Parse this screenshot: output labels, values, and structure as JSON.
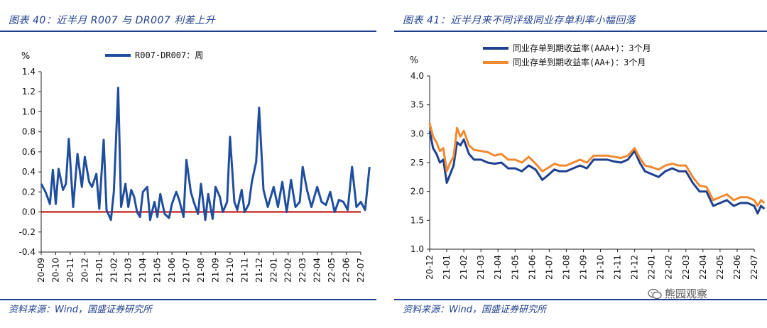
{
  "left": {
    "title": "图表 40：近半月 R007 与 DR007 利差上升",
    "source": "资料来源：Wind，国盛证券研究所",
    "chart_data": {
      "type": "line",
      "ylabel": "%",
      "ylim": [
        -0.4,
        1.4
      ],
      "yticks": [
        "1.4",
        "1.2",
        "1.0",
        "0.8",
        "0.6",
        "0.4",
        "0.2",
        "0.0",
        "-0.2",
        "-0.4"
      ],
      "xticks": [
        "20-09",
        "20-10",
        "20-11",
        "20-12",
        "21-01",
        "21-02",
        "21-03",
        "21-04",
        "21-05",
        "21-06",
        "21-07",
        "21-08",
        "21-09",
        "21-10",
        "21-11",
        "21-12",
        "22-01",
        "22-02",
        "22-03",
        "22-04",
        "22-05",
        "22-06",
        "22-07"
      ],
      "legend_position": "top",
      "series": [
        {
          "name": "R007-DR007：周",
          "color": "#1f4e9e",
          "x": [
            0,
            0.3,
            0.6,
            0.8,
            1.0,
            1.2,
            1.5,
            1.7,
            1.9,
            2.2,
            2.5,
            2.8,
            3.0,
            3.3,
            3.5,
            3.8,
            4.0,
            4.3,
            4.5,
            4.8,
            5.0,
            5.3,
            5.5,
            5.8,
            6.0,
            6.2,
            6.4,
            6.6,
            6.8,
            7.0,
            7.3,
            7.5,
            7.8,
            8.0,
            8.2,
            8.5,
            8.8,
            9.0,
            9.3,
            9.5,
            9.8,
            10.0,
            10.3,
            10.5,
            10.8,
            11.0,
            11.3,
            11.5,
            11.8,
            12.0,
            12.3,
            12.5,
            12.8,
            13.0,
            13.3,
            13.5,
            13.8,
            14.0,
            14.3,
            14.5,
            14.8,
            15.0,
            15.3,
            15.6,
            16.0,
            16.3,
            16.6,
            16.9,
            17.2,
            17.5,
            17.8,
            18.0,
            18.3,
            18.6,
            19.0,
            19.3,
            19.6,
            19.9,
            20.2,
            20.5,
            20.8,
            21.1,
            21.4,
            21.7,
            22.0,
            22.3,
            22.6
          ],
          "values": [
            0.28,
            0.2,
            0.08,
            0.42,
            0.08,
            0.43,
            0.22,
            0.28,
            0.73,
            0.05,
            0.58,
            0.25,
            0.55,
            0.3,
            0.25,
            0.38,
            0.03,
            0.72,
            0.02,
            -0.08,
            0.2,
            1.24,
            0.05,
            0.28,
            0.05,
            0.22,
            0.15,
            0.0,
            -0.05,
            0.2,
            0.25,
            -0.08,
            0.1,
            -0.05,
            0.18,
            -0.02,
            -0.06,
            0.08,
            0.2,
            0.12,
            -0.05,
            0.52,
            0.2,
            0.1,
            -0.02,
            0.28,
            -0.08,
            0.18,
            -0.07,
            0.25,
            0.15,
            0.0,
            0.1,
            0.75,
            0.1,
            0.02,
            0.22,
            0.0,
            0.08,
            0.3,
            0.5,
            1.04,
            0.22,
            0.05,
            0.25,
            0.05,
            0.3,
            0.0,
            0.32,
            0.05,
            0.1,
            0.45,
            0.22,
            0.05,
            0.25,
            0.1,
            0.07,
            0.2,
            0.0,
            0.12,
            0.1,
            0.02,
            0.45,
            0.05,
            0.1,
            0.02,
            0.45
          ]
        }
      ],
      "reference_line": {
        "y": 0.0,
        "color": "#c00000"
      }
    }
  },
  "right": {
    "title": "图表 41：近半月来不同评级同业存单利率小幅回落",
    "source": "资料来源：Wind，国盛证券研究所",
    "chart_data": {
      "type": "line",
      "ylabel": "%",
      "ylim": [
        1.0,
        4.0
      ],
      "yticks": [
        "4.0",
        "3.5",
        "3.0",
        "2.5",
        "2.0",
        "1.5",
        "1.0"
      ],
      "xticks": [
        "20-12",
        "21-01",
        "21-02",
        "21-03",
        "21-04",
        "21-05",
        "21-06",
        "21-07",
        "21-08",
        "21-09",
        "21-10",
        "21-11",
        "21-12",
        "22-01",
        "22-02",
        "22-03",
        "22-04",
        "22-05",
        "22-06",
        "22-07"
      ],
      "legend_position": "top",
      "series": [
        {
          "name": "同业存单到期收益率(AAA+)：3个月",
          "color": "#1f3f8f",
          "x": [
            0,
            0.2,
            0.4,
            0.6,
            0.8,
            1.0,
            1.2,
            1.4,
            1.6,
            1.8,
            2.0,
            2.3,
            2.6,
            3.0,
            3.4,
            3.8,
            4.2,
            4.6,
            5.0,
            5.4,
            5.8,
            6.2,
            6.6,
            7.0,
            7.3,
            7.6,
            8.0,
            8.4,
            8.8,
            9.2,
            9.6,
            10.0,
            10.4,
            10.8,
            11.2,
            11.6,
            12.0,
            12.3,
            12.6,
            13.0,
            13.4,
            13.8,
            14.2,
            14.6,
            15.0,
            15.4,
            15.8,
            16.2,
            16.6,
            17.0,
            17.4,
            17.8,
            18.2,
            18.6,
            19.0,
            19.2,
            19.4,
            19.6
          ],
          "values": [
            3.05,
            2.75,
            2.65,
            2.5,
            2.55,
            2.15,
            2.3,
            2.45,
            2.85,
            2.8,
            2.9,
            2.65,
            2.55,
            2.55,
            2.5,
            2.48,
            2.5,
            2.4,
            2.4,
            2.35,
            2.45,
            2.38,
            2.2,
            2.3,
            2.38,
            2.35,
            2.35,
            2.4,
            2.45,
            2.4,
            2.55,
            2.55,
            2.55,
            2.52,
            2.5,
            2.55,
            2.7,
            2.5,
            2.35,
            2.3,
            2.25,
            2.35,
            2.4,
            2.35,
            2.35,
            2.15,
            2.0,
            2.0,
            1.75,
            1.8,
            1.85,
            1.75,
            1.8,
            1.8,
            1.75,
            1.62,
            1.75,
            1.7
          ]
        },
        {
          "name": "同业存单到期收益率(AA+)：3个月",
          "color": "#f08a30",
          "x": [
            0,
            0.2,
            0.4,
            0.6,
            0.8,
            1.0,
            1.2,
            1.4,
            1.6,
            1.8,
            2.0,
            2.3,
            2.6,
            3.0,
            3.4,
            3.8,
            4.2,
            4.6,
            5.0,
            5.4,
            5.8,
            6.2,
            6.6,
            7.0,
            7.3,
            7.6,
            8.0,
            8.4,
            8.8,
            9.2,
            9.6,
            10.0,
            10.4,
            10.8,
            11.2,
            11.6,
            12.0,
            12.3,
            12.6,
            13.0,
            13.4,
            13.8,
            14.2,
            14.6,
            15.0,
            15.4,
            15.8,
            16.2,
            16.6,
            17.0,
            17.4,
            17.8,
            18.2,
            18.6,
            19.0,
            19.2,
            19.4,
            19.6
          ],
          "values": [
            3.18,
            2.95,
            2.85,
            2.7,
            2.75,
            2.35,
            2.5,
            2.6,
            3.1,
            2.95,
            3.05,
            2.8,
            2.72,
            2.7,
            2.68,
            2.62,
            2.65,
            2.55,
            2.55,
            2.5,
            2.6,
            2.48,
            2.35,
            2.42,
            2.48,
            2.45,
            2.45,
            2.5,
            2.55,
            2.5,
            2.62,
            2.62,
            2.62,
            2.6,
            2.58,
            2.62,
            2.75,
            2.58,
            2.45,
            2.42,
            2.38,
            2.45,
            2.48,
            2.45,
            2.45,
            2.25,
            2.1,
            2.08,
            1.85,
            1.9,
            1.95,
            1.85,
            1.9,
            1.9,
            1.85,
            1.75,
            1.85,
            1.8
          ]
        }
      ]
    }
  },
  "watermark": {
    "text": "熊园观察",
    "icon": "wechat-icon"
  }
}
